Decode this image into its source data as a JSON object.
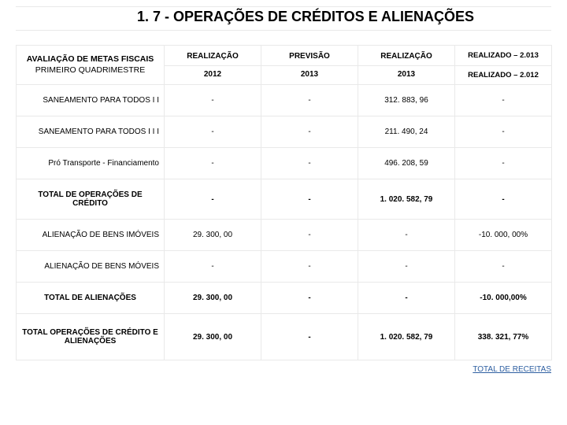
{
  "title": "1. 7 - OPERAÇÕES DE CRÉDITOS E ALIENAÇÕES",
  "header": {
    "left_line1": "AVALIAÇÃO DE METAS FISCAIS",
    "left_line2": "PRIMEIRO QUADRIMESTRE",
    "col1_top": "REALIZAÇÃO",
    "col1_bot": "2012",
    "col2_top": "PREVISÃO",
    "col2_bot": "2013",
    "col3_top": "REALIZAÇÃO",
    "col3_bot": "2013",
    "col4_top": "REALIZADO – 2.013",
    "col4_bot": "REALIZADO – 2.012"
  },
  "rows": [
    {
      "label": "SANEAMENTO PARA TODOS I I",
      "bold": false,
      "v1": "-",
      "v2": "-",
      "v3": "312. 883, 96",
      "v4": "-"
    },
    {
      "label": "SANEAMENTO PARA TODOS I I I",
      "bold": false,
      "v1": "-",
      "v2": "-",
      "v3": "211. 490, 24",
      "v4": "-"
    },
    {
      "label": "Pró Transporte - Financiamento",
      "bold": false,
      "v1": "-",
      "v2": "-",
      "v3": "496. 208, 59",
      "v4": "-"
    },
    {
      "label": "TOTAL DE OPERAÇÕES DE CRÉDITO",
      "bold": true,
      "v1": "-",
      "v2": "-",
      "v3": "1. 020. 582, 79",
      "v4": "-"
    },
    {
      "label": "ALIENAÇÃO DE BENS IMÓVEIS",
      "bold": false,
      "v1": "29. 300, 00",
      "v2": "-",
      "v3": "-",
      "v4": "-10. 000, 00%"
    },
    {
      "label": "ALIENAÇÃO DE BENS MÓVEIS",
      "bold": false,
      "v1": "-",
      "v2": "-",
      "v3": "-",
      "v4": "-"
    },
    {
      "label": "TOTAL DE ALIENAÇÕES",
      "bold": true,
      "v1": "29. 300, 00",
      "v2": "-",
      "v3": "-",
      "v4": "-10. 000,00%"
    },
    {
      "label": "TOTAL OPERAÇÕES DE CRÉDITO E ALIENAÇÕES",
      "bold": true,
      "v1": "29. 300, 00",
      "v2": "-",
      "v3": "1. 020. 582, 79",
      "v4": "338. 321, 77%"
    }
  ],
  "footer_link": "TOTAL DE RECEITAS",
  "colors": {
    "border": "#e9e9e9",
    "link": "#2e5fa1",
    "text": "#000000",
    "background": "#ffffff"
  }
}
